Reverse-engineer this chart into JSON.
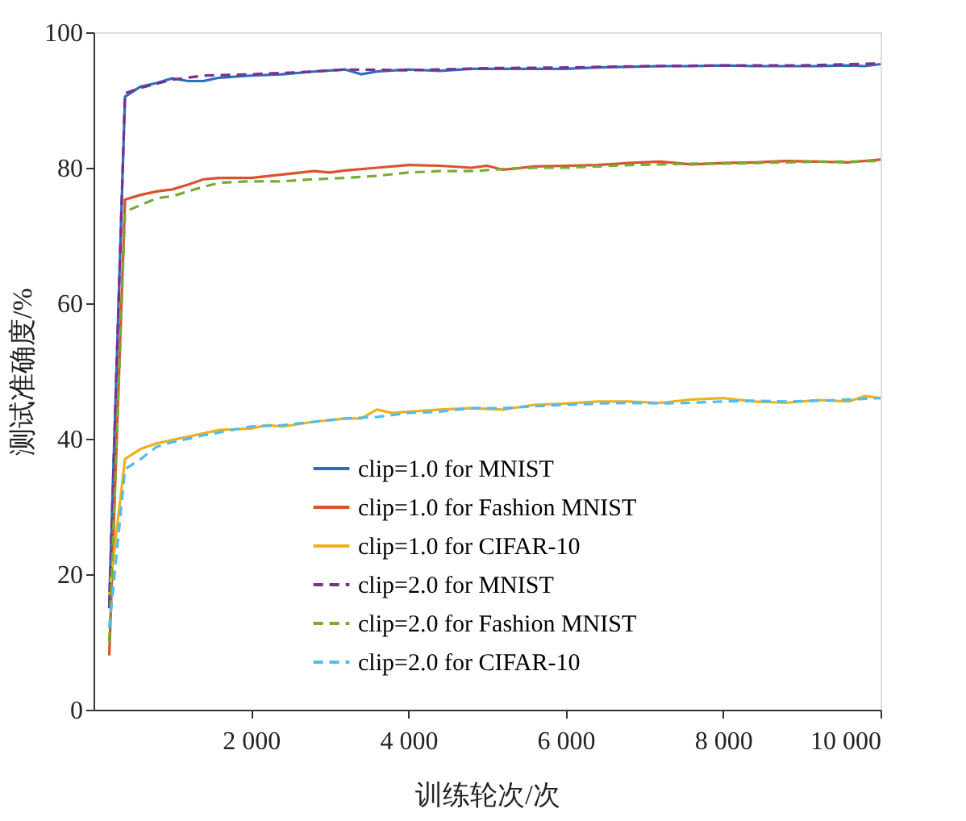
{
  "chart_data": {
    "type": "line",
    "xlabel": "训练轮次/次",
    "ylabel": "测试准确度/%",
    "xlim": [
      0,
      10000
    ],
    "ylim": [
      0,
      100
    ],
    "xticks": [
      {
        "value": 2000,
        "label": "2 000"
      },
      {
        "value": 4000,
        "label": "4 000"
      },
      {
        "value": 6000,
        "label": "6 000"
      },
      {
        "value": 8000,
        "label": "8 000"
      },
      {
        "value": 10000,
        "label": "10 000"
      }
    ],
    "yticks": [
      0,
      20,
      40,
      60,
      80,
      100
    ],
    "grid": false,
    "legend": "bottom right",
    "marker": "none",
    "series": [
      {
        "name": "clip=1.0 for MNIST",
        "color": "#2a6fbd",
        "line_style": "solid",
        "x": [
          200,
          400,
          600,
          800,
          1000,
          1200,
          1400,
          1600,
          2000,
          2400,
          2800,
          3200,
          3400,
          3600,
          4000,
          4400,
          4800,
          5200,
          5600,
          6000,
          6400,
          6800,
          7200,
          7600,
          8000,
          8400,
          8800,
          9200,
          9600,
          9800,
          10000
        ],
        "values": [
          16,
          90.5,
          92,
          92.5,
          93.2,
          92.8,
          92.8,
          93.3,
          93.6,
          93.8,
          94.2,
          94.5,
          93.8,
          94.2,
          94.5,
          94.3,
          94.6,
          94.6,
          94.6,
          94.6,
          94.8,
          94.9,
          95,
          95,
          95.1,
          95,
          95,
          95,
          95.1,
          95,
          95.3
        ]
      },
      {
        "name": "clip=1.0 for Fashion MNIST",
        "color": "#d9532c",
        "line_style": "solid",
        "x": [
          200,
          400,
          600,
          800,
          1000,
          1200,
          1400,
          1600,
          2000,
          2400,
          2800,
          3000,
          3200,
          3600,
          4000,
          4400,
          4800,
          5000,
          5200,
          5600,
          6000,
          6400,
          6800,
          7200,
          7600,
          8000,
          8400,
          8800,
          9200,
          9600,
          10000
        ],
        "values": [
          8,
          75.3,
          76,
          76.5,
          76.8,
          77.5,
          78.3,
          78.5,
          78.5,
          79,
          79.5,
          79.3,
          79.6,
          80,
          80.4,
          80.3,
          80,
          80.3,
          79.7,
          80.2,
          80.3,
          80.4,
          80.7,
          80.9,
          80.5,
          80.7,
          80.8,
          81,
          80.9,
          80.8,
          81.2
        ]
      },
      {
        "name": "clip=1.0 for CIFAR-10",
        "color": "#edb120",
        "line_style": "solid",
        "x": [
          200,
          400,
          600,
          800,
          1000,
          1400,
          1600,
          2000,
          2200,
          2400,
          2800,
          3200,
          3400,
          3600,
          3800,
          4000,
          4400,
          4800,
          5200,
          5600,
          6000,
          6400,
          6800,
          7200,
          7600,
          8000,
          8400,
          8800,
          9200,
          9600,
          9800,
          10000
        ],
        "values": [
          17,
          37,
          38.5,
          39.3,
          39.8,
          40.8,
          41.3,
          41.5,
          42,
          41.8,
          42.5,
          43,
          43,
          44.3,
          43.8,
          44,
          44.3,
          44.5,
          44.3,
          45,
          45.2,
          45.5,
          45.5,
          45.3,
          45.8,
          46,
          45.5,
          45.3,
          45.7,
          45.5,
          46.3,
          46
        ]
      },
      {
        "name": "clip=2.0 for MNIST",
        "color": "#7e2f8e",
        "line_style": "dashed",
        "x": [
          200,
          400,
          600,
          1000,
          1400,
          2000,
          2800,
          3200,
          4000,
          5000,
          6000,
          7000,
          8000,
          9000,
          10000
        ],
        "values": [
          15,
          91,
          91.8,
          93,
          93.6,
          93.8,
          94.2,
          94.5,
          94.4,
          94.7,
          94.8,
          95,
          95.1,
          95.1,
          95.4
        ]
      },
      {
        "name": "clip=2.0 for Fashion MNIST",
        "color": "#77ac30",
        "line_style": "dashed",
        "x": [
          200,
          400,
          600,
          800,
          1000,
          1400,
          1600,
          2000,
          2400,
          2800,
          3200,
          3600,
          4000,
          4400,
          4800,
          5200,
          5600,
          6000,
          6400,
          6800,
          7200,
          7600,
          8000,
          8400,
          8800,
          9200,
          9600,
          10000
        ],
        "values": [
          10,
          73.5,
          74.5,
          75.5,
          75.8,
          77.2,
          77.8,
          78,
          78,
          78.3,
          78.5,
          78.8,
          79.3,
          79.5,
          79.5,
          79.8,
          80,
          80,
          80.2,
          80.4,
          80.5,
          80.6,
          80.6,
          80.7,
          80.8,
          80.9,
          80.9,
          81
        ]
      },
      {
        "name": "clip=2.0 for CIFAR-10",
        "color": "#4dbeee",
        "line_style": "dashed",
        "x": [
          200,
          400,
          600,
          800,
          1000,
          1400,
          2000,
          2400,
          2800,
          3200,
          3600,
          4000,
          4400,
          4800,
          5200,
          5600,
          6000,
          6400,
          6800,
          7200,
          7600,
          8000,
          8400,
          8800,
          9200,
          9600,
          10000
        ],
        "values": [
          12,
          35.5,
          37,
          38.8,
          39.5,
          40.5,
          41.8,
          42,
          42.5,
          43,
          43.2,
          43.8,
          44,
          44.5,
          44.5,
          44.8,
          45,
          45.2,
          45.3,
          45.2,
          45.3,
          45.5,
          45.6,
          45.5,
          45.6,
          45.8,
          46
        ]
      }
    ]
  }
}
